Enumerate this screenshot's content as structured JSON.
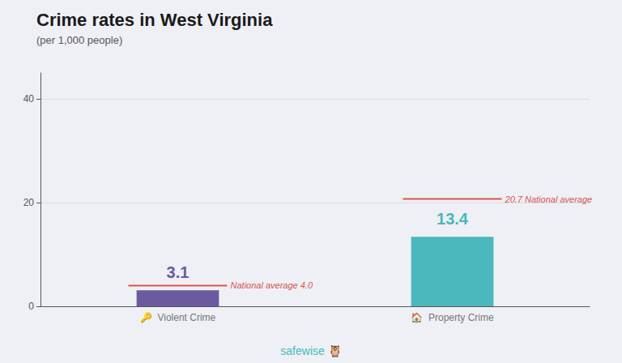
{
  "chart_data": {
    "type": "bar",
    "title": "Crime rates in West Virginia",
    "subtitle": "(per 1,000 people)",
    "categories": [
      "🔑  Violent Crime",
      "🏠  Property Crime"
    ],
    "values": [
      3.1,
      13.4
    ],
    "colors": [
      "#6b5b9e",
      "#4ab8bc"
    ],
    "data_labels": true,
    "national_averages": [
      4.0,
      20.7
    ],
    "national_average_labels": [
      "National average 4.0",
      "20.7 National average"
    ],
    "national_average_color": "#d9534f",
    "ylim": [
      0,
      45
    ],
    "yticks": [
      0,
      20,
      40
    ],
    "grid": true,
    "annotations": [
      {
        "text": "safewise 🦉",
        "color": "#4ab8bc"
      }
    ],
    "background_color": "#eef0f5"
  }
}
